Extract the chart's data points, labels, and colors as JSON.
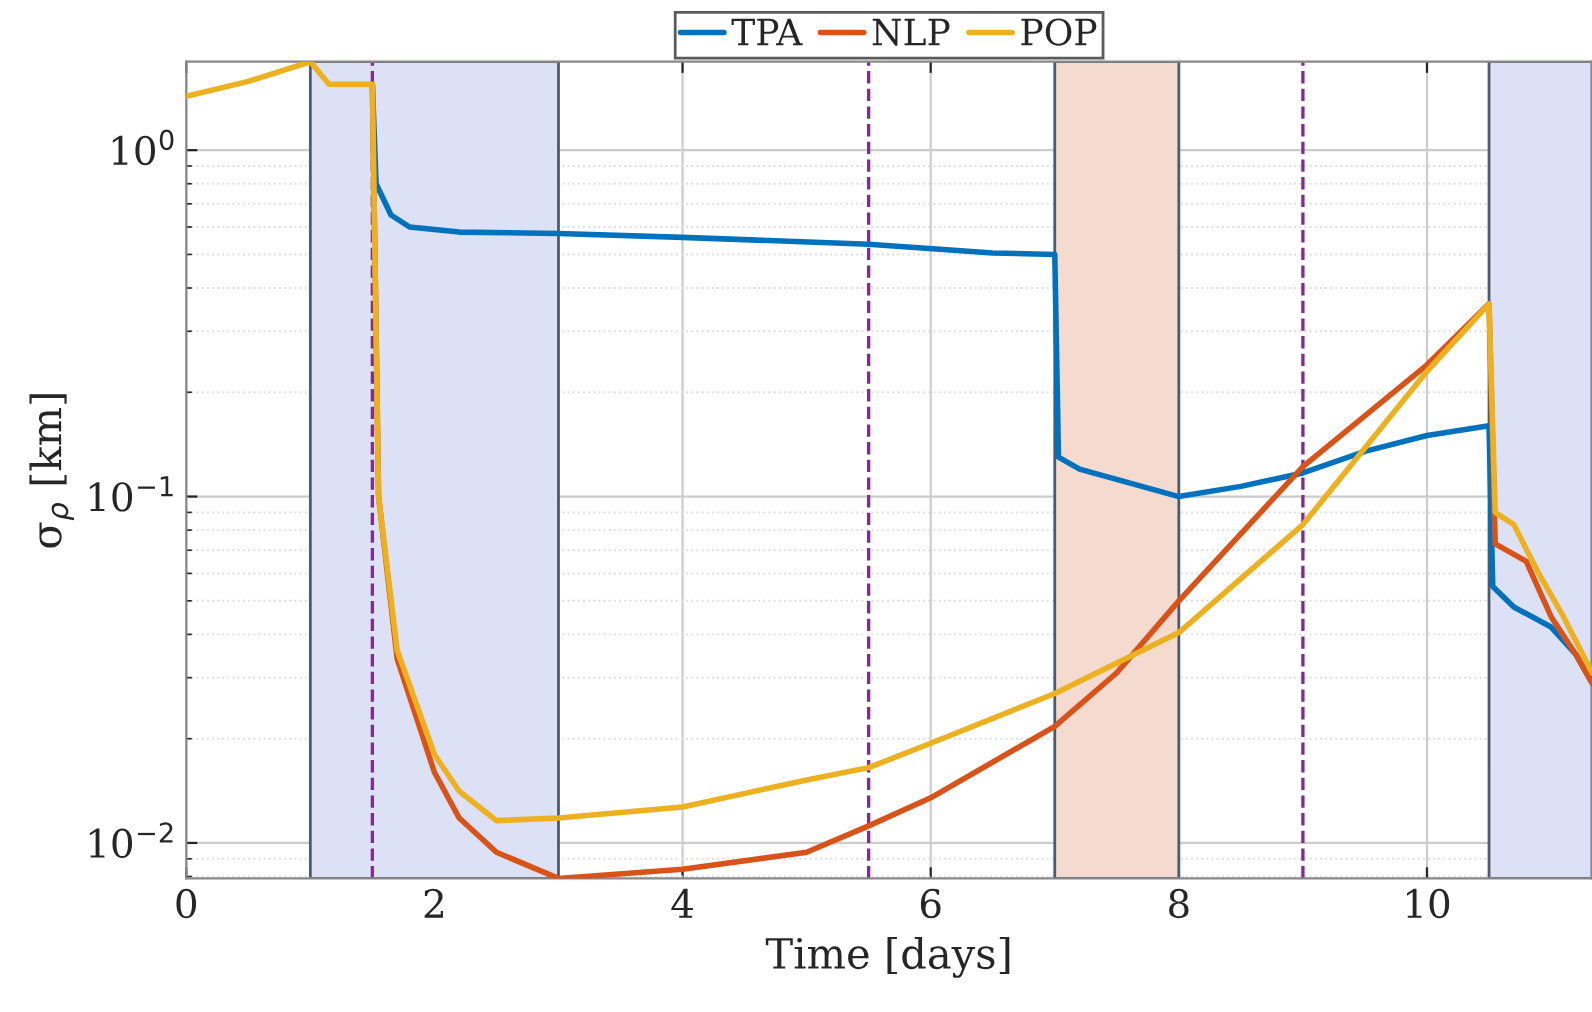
{
  "chart_data": {
    "type": "line",
    "xlabel": "Time [days]",
    "ylabel": "σ$_{ρ}$ [km]",
    "xlim": [
      0,
      11.33
    ],
    "ylim": [
      0.0079,
      1.8
    ],
    "log": "y",
    "xticks": [
      0,
      2,
      4,
      6,
      8,
      10
    ],
    "yticks": [
      {
        "value": 0.01,
        "label": "10$^{−2}$"
      },
      {
        "value": 0.1,
        "label": "10$^{−1}$"
      },
      {
        "value": 1,
        "label": "10$^{0}$"
      }
    ],
    "grid": true,
    "legend": "top",
    "line_style": "solid",
    "marker": "none",
    "series": [
      {
        "name": "TPA",
        "color": "#0072bd",
        "x": [
          1.5,
          1.53,
          1.65,
          1.8,
          2.2,
          3.0,
          4.0,
          5.5,
          6.5,
          7.0,
          7.03,
          7.2,
          8.0,
          8.5,
          9.0,
          9.5,
          10.0,
          10.5,
          10.53,
          10.7,
          11.0,
          11.2,
          11.33
        ],
        "values": [
          1.55,
          0.8,
          0.65,
          0.6,
          0.58,
          0.575,
          0.56,
          0.535,
          0.505,
          0.5,
          0.13,
          0.12,
          0.1,
          0.107,
          0.117,
          0.135,
          0.15,
          0.16,
          0.055,
          0.048,
          0.042,
          0.035,
          0.029
        ]
      },
      {
        "name": "NLP",
        "color": "#d95319",
        "x": [
          1.5,
          1.55,
          1.7,
          2.0,
          2.2,
          2.5,
          3.0,
          4.0,
          5.0,
          5.5,
          6.0,
          7.0,
          7.5,
          8.0,
          9.0,
          10.0,
          10.5,
          10.55,
          10.8,
          11.0,
          11.2,
          11.33
        ],
        "values": [
          1.55,
          0.1,
          0.034,
          0.016,
          0.0118,
          0.0094,
          0.0079,
          0.0084,
          0.0094,
          0.0112,
          0.0135,
          0.0217,
          0.031,
          0.05,
          0.122,
          0.24,
          0.36,
          0.073,
          0.065,
          0.045,
          0.035,
          0.029
        ]
      },
      {
        "name": "POP",
        "color": "#edb120",
        "x": [
          0,
          0.5,
          1.0,
          1.15,
          1.5,
          1.55,
          1.7,
          2.0,
          2.2,
          2.5,
          3.0,
          4.0,
          5.0,
          5.5,
          6.0,
          7.0,
          8.0,
          9.0,
          10.0,
          10.5,
          10.55,
          10.7,
          10.9,
          11.1,
          11.33
        ],
        "values": [
          1.43,
          1.58,
          1.8,
          1.55,
          1.55,
          0.1,
          0.036,
          0.018,
          0.0141,
          0.0116,
          0.0118,
          0.0127,
          0.0152,
          0.0165,
          0.0194,
          0.027,
          0.0405,
          0.083,
          0.23,
          0.36,
          0.09,
          0.083,
          0.06,
          0.045,
          0.031
        ]
      }
    ],
    "bands": [
      {
        "axis": "x",
        "from": 1,
        "to": 3,
        "color": "#dde1f5"
      },
      {
        "axis": "x",
        "from": 7,
        "to": 8,
        "color": "#f5dacf"
      },
      {
        "axis": "x",
        "from": 10.5,
        "to": 11.33,
        "color": "#dde1f5"
      }
    ],
    "ref_lines": [
      {
        "axis": "x",
        "value": 1.5,
        "color": "#7e2f8e",
        "line_style": "dashed"
      },
      {
        "axis": "x",
        "value": 5.5,
        "color": "#7e2f8e",
        "line_style": "dashed"
      },
      {
        "axis": "x",
        "value": 9,
        "color": "#7e2f8e",
        "line_style": "dashed"
      }
    ]
  }
}
